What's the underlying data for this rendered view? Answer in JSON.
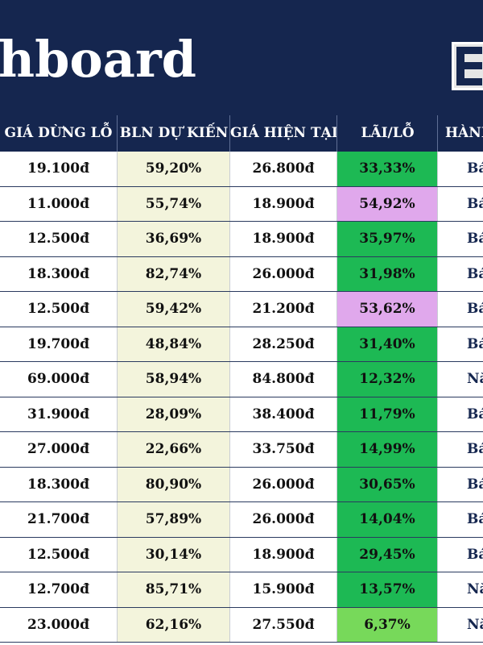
{
  "banner": {
    "title": "hboard"
  },
  "table": {
    "headers": [
      "GIÁ DỪNG LỖ",
      "BLN DỰ KIẾN",
      "GIÁ HIỆN TẠI",
      "LÃI/LỖ",
      "HÀNH"
    ],
    "rows": [
      {
        "stop_loss": "19.100đ",
        "expected": "59,20%",
        "current": "26.800đ",
        "pnl": "33,33%",
        "pnl_color": "#1db954",
        "action": "Bá"
      },
      {
        "stop_loss": "11.000đ",
        "expected": "55,74%",
        "current": "18.900đ",
        "pnl": "54,92%",
        "pnl_color": "#e0a8ec",
        "action": "Bá"
      },
      {
        "stop_loss": "12.500đ",
        "expected": "36,69%",
        "current": "18.900đ",
        "pnl": "35,97%",
        "pnl_color": "#1db954",
        "action": "Bá"
      },
      {
        "stop_loss": "18.300đ",
        "expected": "82,74%",
        "current": "26.000đ",
        "pnl": "31,98%",
        "pnl_color": "#1db954",
        "action": "Bá"
      },
      {
        "stop_loss": "12.500đ",
        "expected": "59,42%",
        "current": "21.200đ",
        "pnl": "53,62%",
        "pnl_color": "#e0a8ec",
        "action": "Bá"
      },
      {
        "stop_loss": "19.700đ",
        "expected": "48,84%",
        "current": "28.250đ",
        "pnl": "31,40%",
        "pnl_color": "#1db954",
        "action": "Bá"
      },
      {
        "stop_loss": "69.000đ",
        "expected": "58,94%",
        "current": "84.800đ",
        "pnl": "12,32%",
        "pnl_color": "#1db954",
        "action": "Nắ"
      },
      {
        "stop_loss": "31.900đ",
        "expected": "28,09%",
        "current": "38.400đ",
        "pnl": "11,79%",
        "pnl_color": "#1db954",
        "action": "Bá"
      },
      {
        "stop_loss": "27.000đ",
        "expected": "22,66%",
        "current": "33.750đ",
        "pnl": "14,99%",
        "pnl_color": "#1db954",
        "action": "Bá"
      },
      {
        "stop_loss": "18.300đ",
        "expected": "80,90%",
        "current": "26.000đ",
        "pnl": "30,65%",
        "pnl_color": "#1db954",
        "action": "Bá"
      },
      {
        "stop_loss": "21.700đ",
        "expected": "57,89%",
        "current": "26.000đ",
        "pnl": "14,04%",
        "pnl_color": "#1db954",
        "action": "Bá"
      },
      {
        "stop_loss": "12.500đ",
        "expected": "30,14%",
        "current": "18.900đ",
        "pnl": "29,45%",
        "pnl_color": "#1db954",
        "action": "Bá"
      },
      {
        "stop_loss": "12.700đ",
        "expected": "85,71%",
        "current": "15.900đ",
        "pnl": "13,57%",
        "pnl_color": "#1db954",
        "action": "Nắ"
      },
      {
        "stop_loss": "23.000đ",
        "expected": "62,16%",
        "current": "27.550đ",
        "pnl": "6,37%",
        "pnl_color": "#77d95a",
        "action": "Nắ"
      }
    ]
  },
  "colors": {
    "banner": "#15264f",
    "expected_column": "#f3f4dc",
    "pnl_high": "#e0a8ec",
    "pnl_positive": "#1db954",
    "pnl_low": "#77d95a"
  }
}
